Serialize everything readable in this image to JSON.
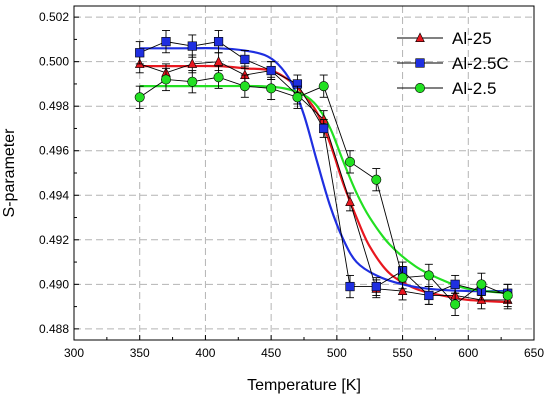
{
  "chart_data": {
    "type": "line",
    "xlabel": "Temperature [K]",
    "ylabel": "S-parameter",
    "xlim": [
      300,
      650
    ],
    "ylim": [
      0.4875,
      0.5025
    ],
    "x_ticks": [
      300,
      350,
      400,
      450,
      500,
      550,
      600,
      650
    ],
    "y_ticks": [
      0.488,
      0.49,
      0.492,
      0.494,
      0.496,
      0.498,
      0.5,
      0.502
    ],
    "x_tick_labels": [
      "300",
      "350",
      "400",
      "450",
      "500",
      "550",
      "600",
      "650"
    ],
    "y_tick_labels": [
      "0.488",
      "0.490",
      "0.492",
      "0.494",
      "0.496",
      "0.498",
      "0.500",
      "0.502"
    ],
    "grid": true,
    "legend_position": "top-right",
    "series": [
      {
        "name": "Al-25",
        "marker": "triangle",
        "marker_color": "#e8171f",
        "fit_color": "#e8171f",
        "x": [
          350,
          370,
          390,
          410,
          430,
          450,
          470,
          490,
          510,
          530,
          550,
          570,
          590,
          610,
          630
        ],
        "y": [
          0.4999,
          0.4995,
          0.4999,
          0.5,
          0.4994,
          0.4996,
          0.4985,
          0.4974,
          0.4937,
          0.4898,
          0.4897,
          0.4895,
          0.4895,
          0.4893,
          0.4893
        ],
        "error": [
          0.0004,
          0.0004,
          0.0004,
          0.0004,
          0.0004,
          0.0004,
          0.0004,
          0.0004,
          0.0004,
          0.0004,
          0.0004,
          0.0004,
          0.0004,
          0.0004,
          0.0004
        ],
        "fit_x": [
          350,
          380,
          410,
          430,
          450,
          465,
          475,
          485,
          495,
          505,
          515,
          525,
          540,
          560,
          580,
          600,
          630
        ],
        "fit_y": [
          0.4998,
          0.4998,
          0.4998,
          0.4997,
          0.4996,
          0.4991,
          0.4985,
          0.4977,
          0.4963,
          0.4945,
          0.493,
          0.4917,
          0.4905,
          0.4898,
          0.4895,
          0.4893,
          0.4892
        ]
      },
      {
        "name": "Al-2.5C",
        "marker": "square",
        "marker_color": "#1f2fe0",
        "fit_color": "#1f2fe0",
        "x": [
          350,
          370,
          390,
          410,
          430,
          450,
          470,
          490,
          510,
          530,
          550,
          570,
          590,
          610,
          630
        ],
        "y": [
          0.5004,
          0.5009,
          0.5007,
          0.5009,
          0.5001,
          0.4996,
          0.499,
          0.497,
          0.4899,
          0.4899,
          0.4906,
          0.4895,
          0.49,
          0.4897,
          0.4896
        ],
        "error": [
          0.0005,
          0.0005,
          0.0005,
          0.0005,
          0.0004,
          0.0004,
          0.0004,
          0.0004,
          0.0005,
          0.0004,
          0.0004,
          0.0004,
          0.0004,
          0.0004,
          0.0004
        ],
        "fit_x": [
          350,
          380,
          410,
          430,
          445,
          455,
          465,
          475,
          485,
          495,
          505,
          515,
          530,
          550,
          570,
          600,
          630
        ],
        "fit_y": [
          0.5006,
          0.5006,
          0.5006,
          0.5005,
          0.5003,
          0.4999,
          0.4991,
          0.4976,
          0.4955,
          0.4935,
          0.492,
          0.491,
          0.4904,
          0.49,
          0.4898,
          0.4897,
          0.4897
        ]
      },
      {
        "name": "Al-2.5",
        "marker": "circle",
        "marker_color": "#22e022",
        "fit_color": "#22e022",
        "x": [
          350,
          370,
          390,
          410,
          430,
          450,
          470,
          490,
          510,
          530,
          550,
          570,
          590,
          610,
          630
        ],
        "y": [
          0.4984,
          0.4992,
          0.4991,
          0.4993,
          0.4989,
          0.4988,
          0.4984,
          0.4989,
          0.4955,
          0.4947,
          0.4903,
          0.4904,
          0.4891,
          0.49,
          0.4895
        ],
        "error": [
          0.0005,
          0.0005,
          0.0005,
          0.0005,
          0.0005,
          0.0005,
          0.0005,
          0.0005,
          0.0005,
          0.0005,
          0.0005,
          0.0005,
          0.0005,
          0.0005,
          0.0005
        ],
        "fit_x": [
          350,
          400,
          440,
          460,
          475,
          485,
          495,
          505,
          515,
          525,
          540,
          560,
          580,
          600,
          630
        ],
        "fit_y": [
          0.4989,
          0.4989,
          0.4989,
          0.4988,
          0.4985,
          0.498,
          0.497,
          0.4955,
          0.4941,
          0.493,
          0.4918,
          0.4908,
          0.4902,
          0.4898,
          0.4896
        ]
      }
    ]
  }
}
